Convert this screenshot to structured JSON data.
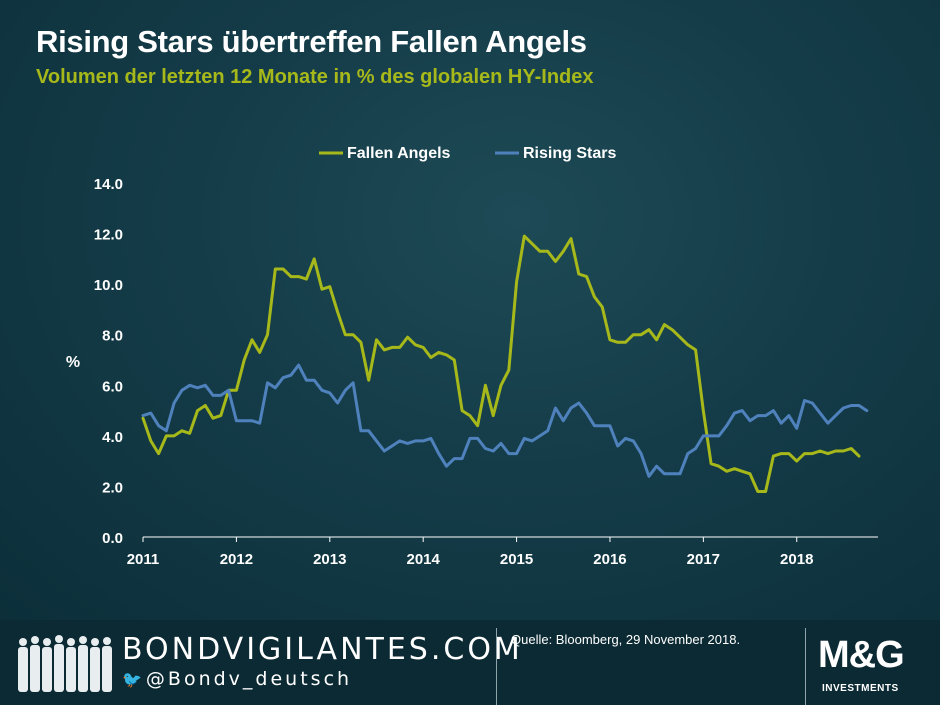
{
  "title": "Rising Stars übertreffen Fallen Angels",
  "subtitle": "Volumen der letzten 12 Monate in %  des globalen HY-Index",
  "footer": {
    "site": "BONDVIGILANTES.COM",
    "twitter_prefix": "@",
    "twitter_handle": "Bondv_deutsch",
    "source": "Quelle: Bloomberg, 29 November 2018.",
    "logo_main": "M&G",
    "logo_sub": "INVESTMENTS",
    "icons": [
      "people-silhouette-icon",
      "twitter-bird-icon"
    ]
  },
  "colors": {
    "background": "#0f3440",
    "fallen_angels": "#a7b91a",
    "rising_stars": "#4f81bd",
    "axis_text": "#ffffff",
    "title": "#ffffff",
    "subtitle": "#a7b91a",
    "footer": "#0c2a33"
  },
  "chart_data": {
    "type": "line",
    "title": "Rising Stars übertreffen Fallen Angels",
    "subtitle": "Volumen der letzten 12 Monate in %  des globalen HY-Index",
    "xlabel": "",
    "ylabel": "%",
    "xlim": [
      2011,
      2018.87
    ],
    "ylim": [
      0,
      14
    ],
    "x_ticks": [
      2011,
      2012,
      2013,
      2014,
      2015,
      2016,
      2017,
      2018
    ],
    "x_tick_labels": [
      "2011",
      "2012",
      "2013",
      "2014",
      "2015",
      "2016",
      "2017",
      "2018"
    ],
    "y_ticks": [
      0,
      2,
      4,
      6,
      8,
      10,
      12,
      14
    ],
    "y_tick_labels": [
      "0.0",
      "2.0",
      "4.0",
      "6.0",
      "8.0",
      "10.0",
      "12.0",
      "14.0"
    ],
    "grid": false,
    "legend_position": "top-center",
    "x_start": 2011.0,
    "x_step": 0.08333,
    "series": [
      {
        "name": "Fallen Angels",
        "color": "#a7b91a",
        "values": [
          4.7,
          3.8,
          3.3,
          4.0,
          4.0,
          4.2,
          4.1,
          5.0,
          5.2,
          4.7,
          4.8,
          5.8,
          5.8,
          7.0,
          7.8,
          7.3,
          8.0,
          10.6,
          10.6,
          10.3,
          10.3,
          10.2,
          11.0,
          9.8,
          9.9,
          8.9,
          8.0,
          8.0,
          7.7,
          6.2,
          7.8,
          7.4,
          7.5,
          7.5,
          7.9,
          7.6,
          7.5,
          7.1,
          7.3,
          7.2,
          7.0,
          5.0,
          4.8,
          4.4,
          6.0,
          4.8,
          6.0,
          6.6,
          10.1,
          11.9,
          11.6,
          11.3,
          11.3,
          10.9,
          11.3,
          11.8,
          10.4,
          10.3,
          9.5,
          9.1,
          7.8,
          7.7,
          7.7,
          8.0,
          8.0,
          8.2,
          7.8,
          8.4,
          8.2,
          7.9,
          7.6,
          7.4,
          5.0,
          2.9,
          2.8,
          2.6,
          2.7,
          2.6,
          2.5,
          1.8,
          1.8,
          3.2,
          3.3,
          3.3,
          3.0,
          3.3,
          3.3,
          3.4,
          3.3,
          3.4,
          3.4,
          3.5,
          3.2
        ]
      },
      {
        "name": "Rising Stars",
        "color": "#4f81bd",
        "values": [
          4.8,
          4.9,
          4.4,
          4.2,
          5.3,
          5.8,
          6.0,
          5.9,
          6.0,
          5.6,
          5.6,
          5.8,
          4.6,
          4.6,
          4.6,
          4.5,
          6.1,
          5.9,
          6.3,
          6.4,
          6.8,
          6.2,
          6.2,
          5.8,
          5.7,
          5.3,
          5.8,
          6.1,
          4.2,
          4.2,
          3.8,
          3.4,
          3.6,
          3.8,
          3.7,
          3.8,
          3.8,
          3.9,
          3.3,
          2.8,
          3.1,
          3.1,
          3.9,
          3.9,
          3.5,
          3.4,
          3.7,
          3.3,
          3.3,
          3.9,
          3.8,
          4.0,
          4.2,
          5.1,
          4.6,
          5.1,
          5.3,
          4.9,
          4.4,
          4.4,
          4.4,
          3.6,
          3.9,
          3.8,
          3.3,
          2.4,
          2.8,
          2.5,
          2.5,
          2.5,
          3.3,
          3.5,
          4.0,
          4.0,
          4.0,
          4.4,
          4.9,
          5.0,
          4.6,
          4.8,
          4.8,
          5.0,
          4.5,
          4.8,
          4.3,
          5.4,
          5.3,
          4.9,
          4.5,
          4.8,
          5.1,
          5.2,
          5.2,
          5.0
        ]
      }
    ]
  }
}
